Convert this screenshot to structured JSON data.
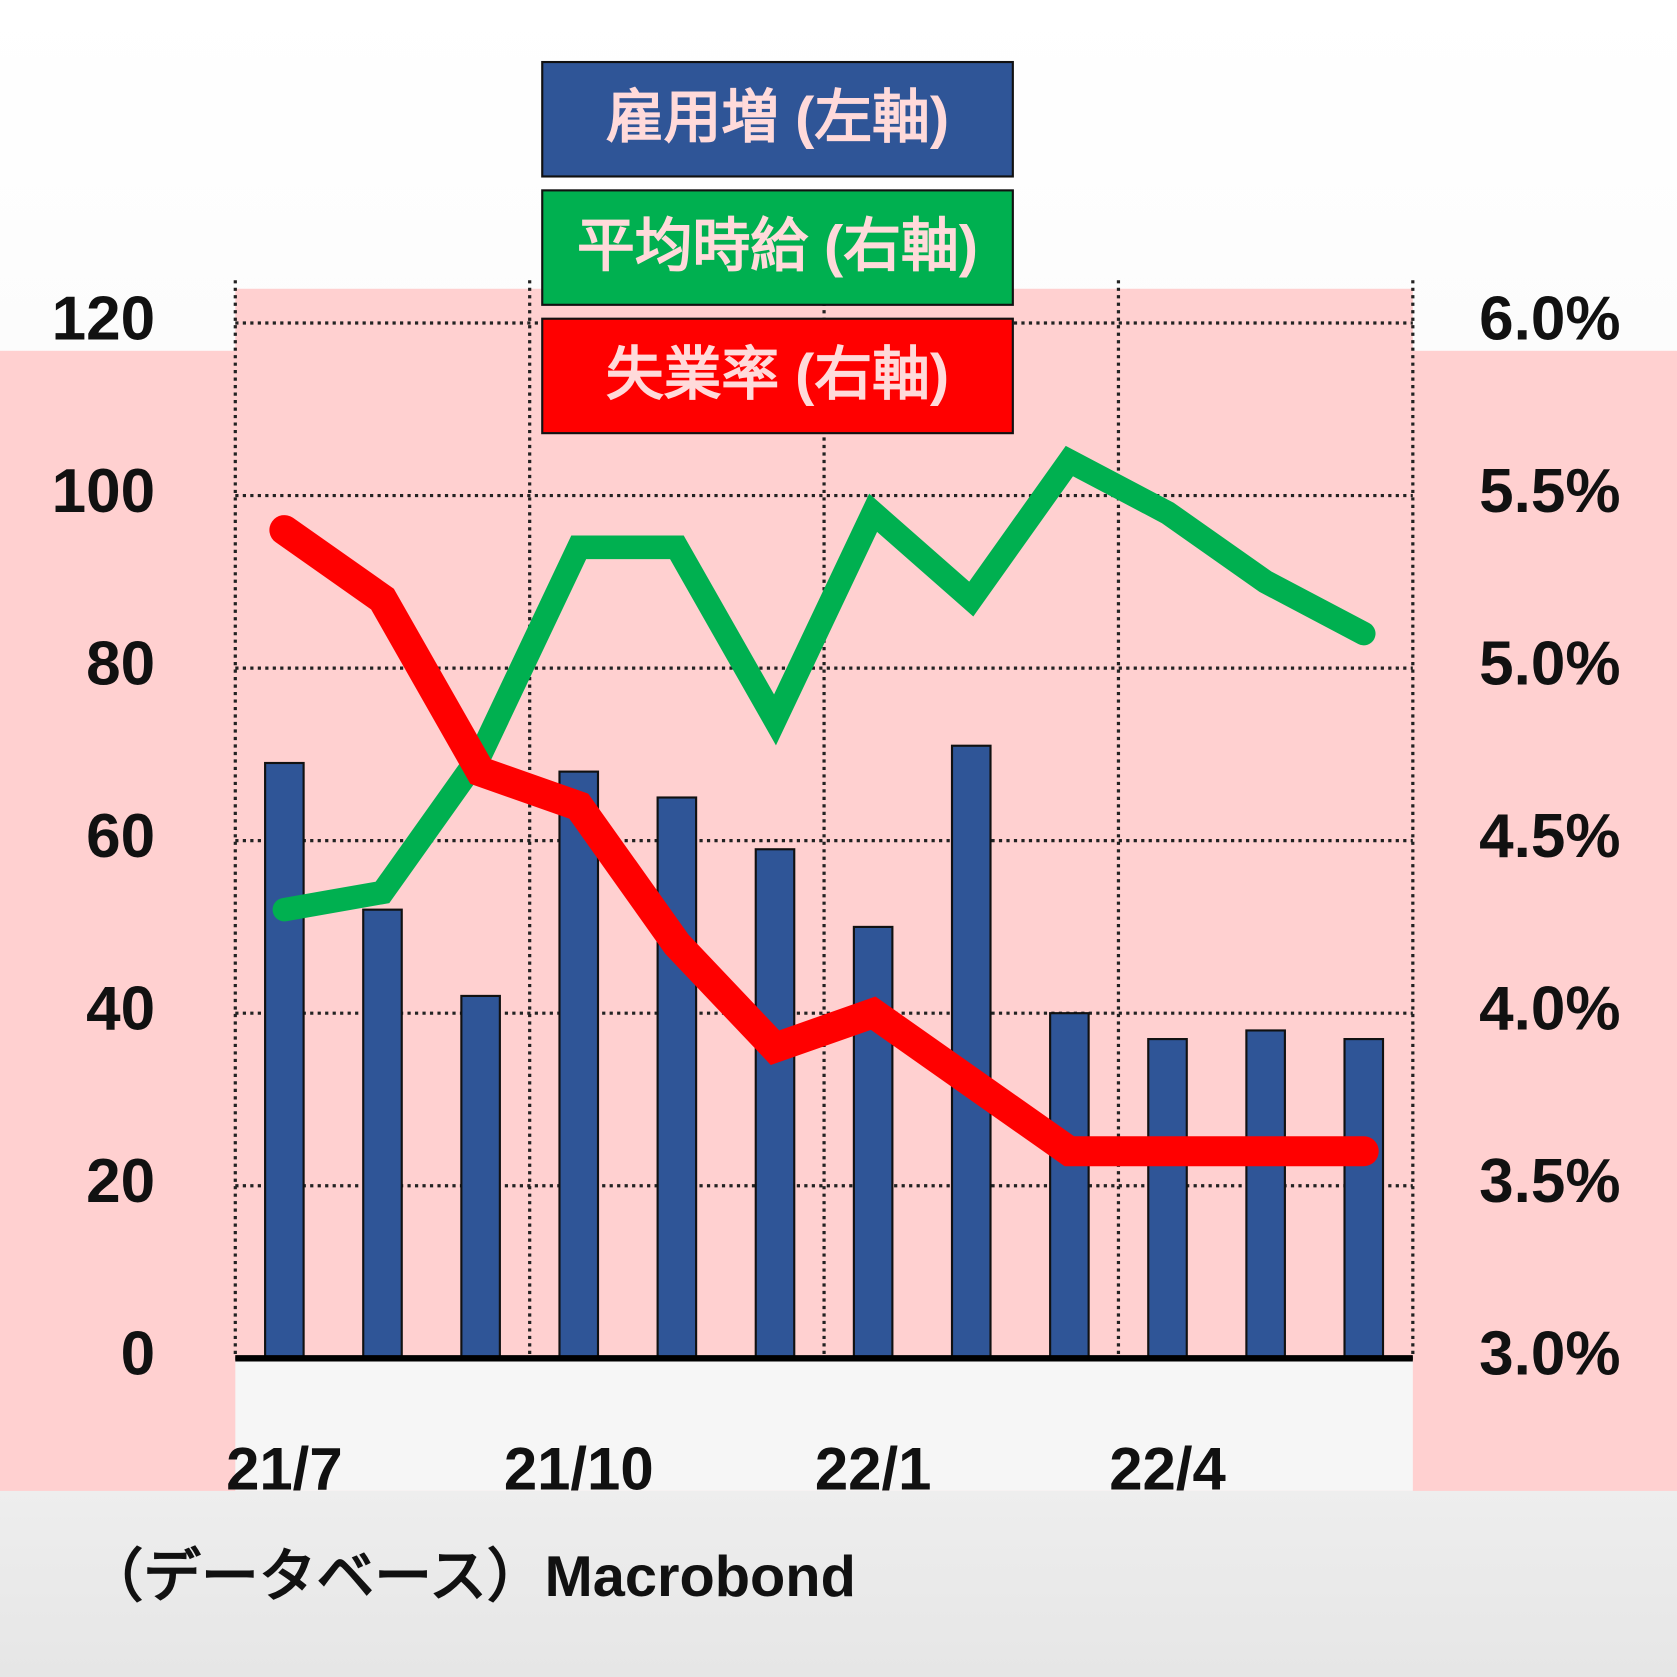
{
  "chart_data": {
    "type": "bar-line",
    "categories": [
      "21/7",
      null,
      null,
      "21/10",
      null,
      null,
      "22/1",
      null,
      null,
      "22/4",
      null,
      null
    ],
    "series": [
      {
        "name": "雇用増 (左軸)",
        "type": "bar",
        "color": "#2f5597",
        "values": [
          69,
          52,
          42,
          68,
          65,
          59,
          50,
          71,
          40,
          37,
          38,
          37
        ]
      },
      {
        "name": "平均時給 (右軸)",
        "type": "line",
        "axis": "y2",
        "color": "#00b050",
        "values": [
          4.3,
          4.35,
          4.75,
          5.35,
          5.35,
          4.85,
          5.45,
          5.2,
          5.6,
          5.45,
          5.25,
          5.1
        ]
      },
      {
        "name": "失業率 (右軸)",
        "type": "line",
        "axis": "y2",
        "color": "#ff0000",
        "values": [
          5.4,
          5.2,
          4.7,
          4.6,
          4.2,
          3.9,
          4.0,
          3.8,
          3.6,
          3.6,
          3.6,
          3.6
        ]
      }
    ],
    "ylim": [
      0,
      120
    ],
    "yticks": [
      0,
      20,
      40,
      60,
      80,
      100,
      120
    ],
    "y2lim": [
      3,
      6
    ],
    "y2ticks": [
      {
        "value": 3,
        "label": "3.0%"
      },
      {
        "value": 3.5,
        "label": "3.5%"
      },
      {
        "value": 4,
        "label": "4.0%"
      },
      {
        "value": 4.5,
        "label": "4.5%"
      },
      {
        "value": 5,
        "label": "5.0%"
      },
      {
        "value": 5.5,
        "label": "5.5%"
      },
      {
        "value": 6,
        "label": "6.0%"
      }
    ],
    "grid": true,
    "source": "（データベース）Macrobond"
  }
}
